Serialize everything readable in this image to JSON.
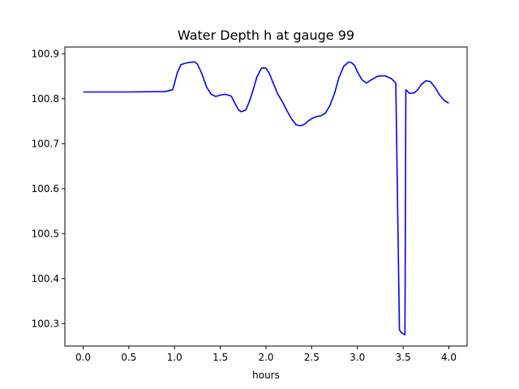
{
  "chart_data": {
    "type": "line",
    "title": "Water Depth h at gauge 99",
    "xlabel": "hours",
    "ylabel": "",
    "xlim": [
      -0.2,
      4.2
    ],
    "ylim": [
      100.25,
      100.915
    ],
    "xticks": [
      0.0,
      0.5,
      1.0,
      1.5,
      2.0,
      2.5,
      3.0,
      3.5,
      4.0
    ],
    "xtick_labels": [
      "0.0",
      "0.5",
      "1.0",
      "1.5",
      "2.0",
      "2.5",
      "3.0",
      "3.5",
      "4.0"
    ],
    "yticks": [
      100.3,
      100.4,
      100.5,
      100.6,
      100.7,
      100.8,
      100.9
    ],
    "ytick_labels": [
      "100.3",
      "100.4",
      "100.5",
      "100.6",
      "100.7",
      "100.8",
      "100.9"
    ],
    "grid": false,
    "legend": "none",
    "series": [
      {
        "color": "#0000ff",
        "x": [
          0.0,
          0.5,
          0.9,
          0.98,
          1.03,
          1.07,
          1.12,
          1.17,
          1.22,
          1.25,
          1.3,
          1.35,
          1.4,
          1.45,
          1.5,
          1.55,
          1.62,
          1.66,
          1.7,
          1.73,
          1.78,
          1.82,
          1.86,
          1.9,
          1.95,
          2.0,
          2.04,
          2.08,
          2.13,
          2.18,
          2.23,
          2.28,
          2.33,
          2.38,
          2.42,
          2.46,
          2.5,
          2.55,
          2.6,
          2.65,
          2.7,
          2.75,
          2.8,
          2.85,
          2.9,
          2.93,
          2.97,
          3.0,
          3.05,
          3.1,
          3.15,
          3.22,
          3.3,
          3.37,
          3.42,
          3.46,
          3.48,
          3.52,
          3.53,
          3.57,
          3.62,
          3.66,
          3.7,
          3.75,
          3.8,
          3.85,
          3.9,
          3.95,
          4.0
        ],
        "y": [
          100.815,
          100.815,
          100.816,
          100.82,
          100.858,
          100.876,
          100.879,
          100.881,
          100.882,
          100.877,
          100.855,
          100.826,
          100.81,
          100.805,
          100.808,
          100.81,
          100.806,
          100.79,
          100.775,
          100.771,
          100.775,
          100.795,
          100.82,
          100.848,
          100.868,
          100.868,
          100.855,
          100.834,
          100.81,
          100.793,
          100.773,
          100.755,
          100.742,
          100.74,
          100.743,
          100.75,
          100.756,
          100.76,
          100.762,
          100.768,
          100.785,
          100.812,
          100.848,
          100.872,
          100.881,
          100.881,
          100.874,
          100.86,
          100.842,
          100.835,
          100.842,
          100.85,
          100.851,
          100.845,
          100.835,
          100.286,
          100.28,
          100.275,
          100.82,
          100.812,
          100.813,
          100.82,
          100.832,
          100.84,
          100.838,
          100.825,
          100.808,
          100.796,
          100.79
        ]
      }
    ]
  }
}
